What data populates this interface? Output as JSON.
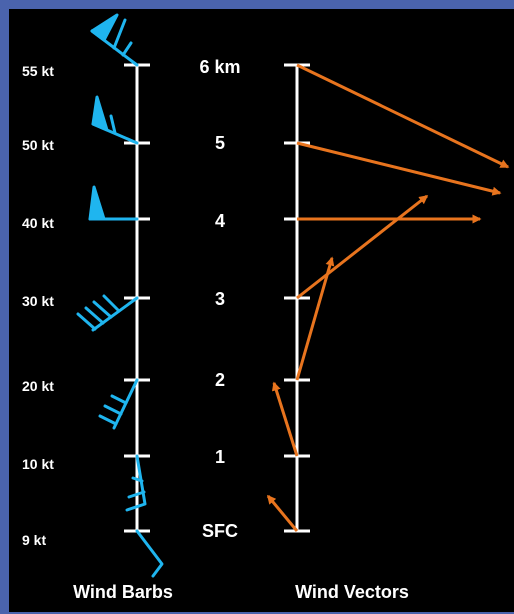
{
  "titles": {
    "barbs": "Wind Barbs",
    "vectors": "Wind Vectors"
  },
  "colors": {
    "background": "#4a63ad",
    "panel": "#000000",
    "axis": "#ffffff",
    "barb": "#1fb5ef",
    "vector": "#e8741e"
  },
  "levels": [
    {
      "height_label": "SFC",
      "speed_label": "9 kt"
    },
    {
      "height_label": "1",
      "speed_label": "10 kt"
    },
    {
      "height_label": "2",
      "speed_label": "20 kt"
    },
    {
      "height_label": "3",
      "speed_label": "30 kt"
    },
    {
      "height_label": "4",
      "speed_label": "40 kt"
    },
    {
      "height_label": "5",
      "speed_label": "50 kt"
    },
    {
      "height_label": "6 km",
      "speed_label": "55 kt"
    }
  ]
}
